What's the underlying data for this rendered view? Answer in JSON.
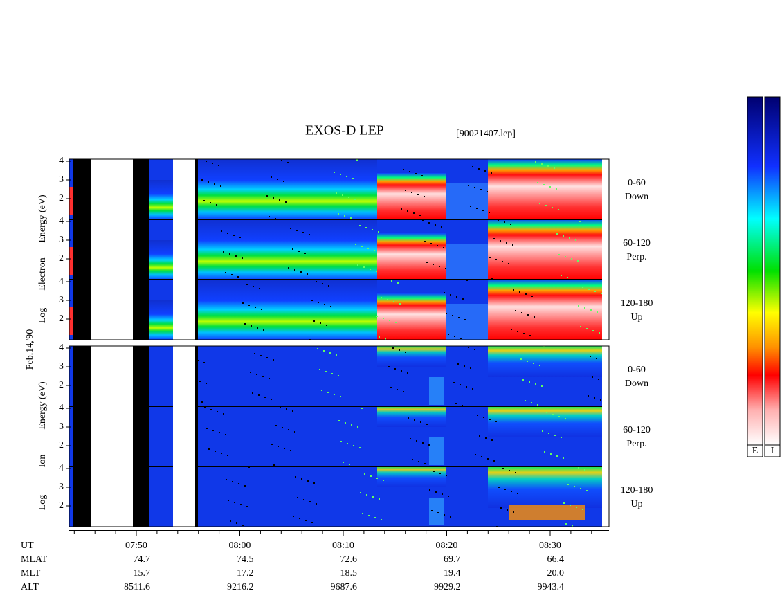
{
  "title": "EXOS-D LEP",
  "file": "[90021407.lep]",
  "date": "Feb.14,'90",
  "yticks": [
    2,
    3,
    4
  ],
  "electron": {
    "axis_label": [
      "Log",
      "Electron",
      "Energy (eV)"
    ],
    "bands": [
      {
        "range": "0-60",
        "direction": "Down"
      },
      {
        "range": "60-120",
        "direction": "Perp."
      },
      {
        "range": "120-180",
        "direction": "Up"
      }
    ]
  },
  "ion": {
    "axis_label": [
      "Log",
      "Ion",
      "Energy (eV)"
    ],
    "bands": [
      {
        "range": "0-60",
        "direction": "Down"
      },
      {
        "range": "60-120",
        "direction": "Perp."
      },
      {
        "range": "120-180",
        "direction": "Up"
      }
    ]
  },
  "time_ticks": [
    "07:50",
    "08:00",
    "08:10",
    "08:20",
    "08:30"
  ],
  "ephemeris": [
    {
      "name": "UT"
    },
    {
      "name": "MLAT",
      "values": [
        "74.7",
        "74.5",
        "72.6",
        "69.7",
        "66.4"
      ]
    },
    {
      "name": "MLT",
      "values": [
        "15.7",
        "17.2",
        "18.5",
        "19.4",
        "20.0"
      ]
    },
    {
      "name": "ALT",
      "values": [
        "8511.6",
        "9216.2",
        "9687.6",
        "9929.2",
        "9943.4"
      ]
    }
  ],
  "colorbars": [
    "E",
    "I"
  ]
}
